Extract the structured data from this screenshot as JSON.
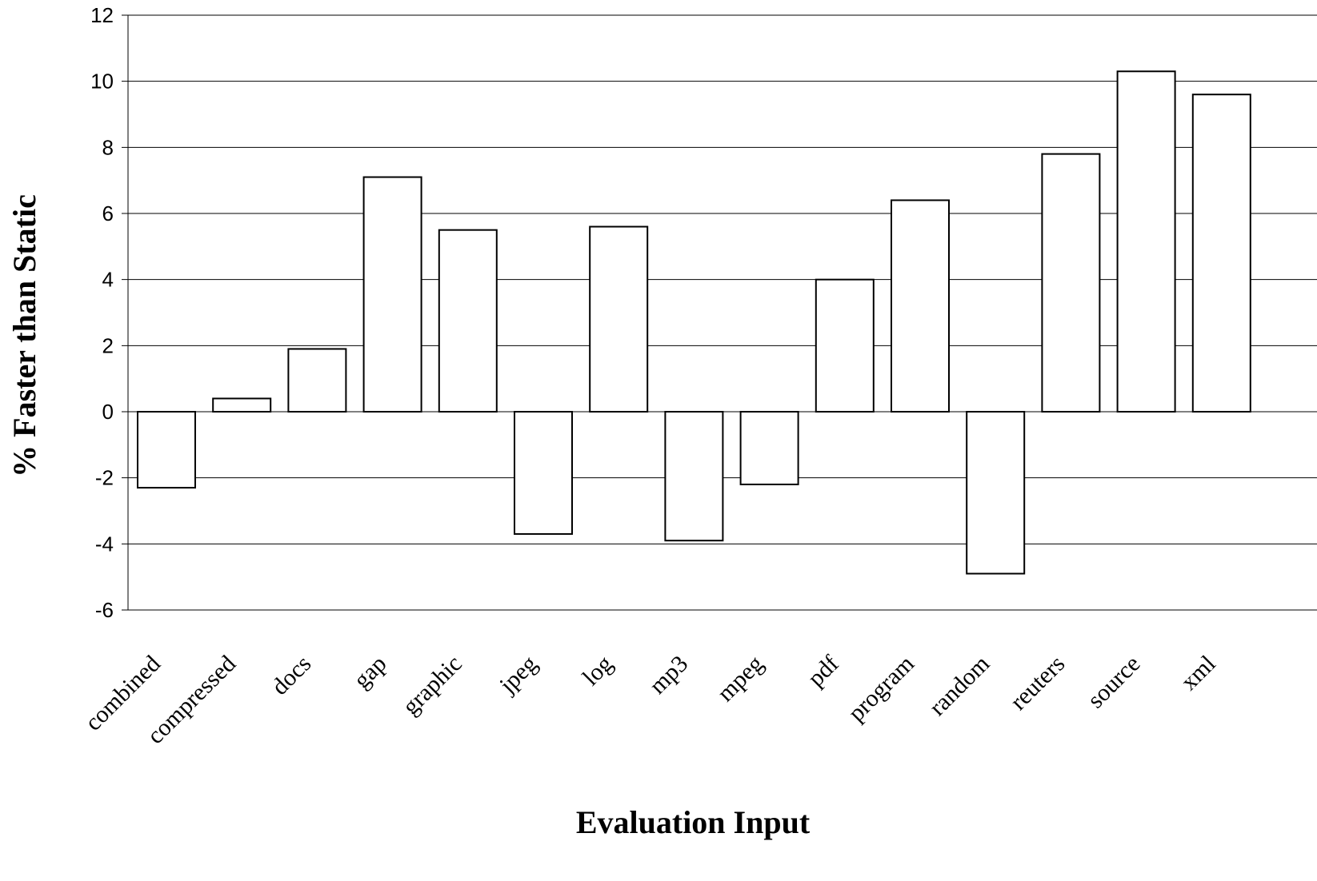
{
  "chart_data": {
    "type": "bar",
    "title": "",
    "xlabel": "Evaluation Input",
    "ylabel": "% Faster than Static",
    "categories": [
      "combined",
      "compressed",
      "docs",
      "gap",
      "graphic",
      "jpeg",
      "log",
      "mp3",
      "mpeg",
      "pdf",
      "program",
      "random",
      "reuters",
      "source",
      "xml"
    ],
    "values": [
      -2.3,
      0.4,
      1.9,
      7.1,
      5.5,
      -3.7,
      5.6,
      -3.9,
      -2.2,
      4.0,
      6.4,
      -4.9,
      7.8,
      10.3,
      9.6
    ],
    "ylim": [
      -6,
      12
    ],
    "yticks": [
      -6,
      -4,
      -2,
      0,
      2,
      4,
      6,
      8,
      10,
      12
    ],
    "grid": true,
    "bar_fill": "#ffffff",
    "bar_stroke": "#000000"
  }
}
